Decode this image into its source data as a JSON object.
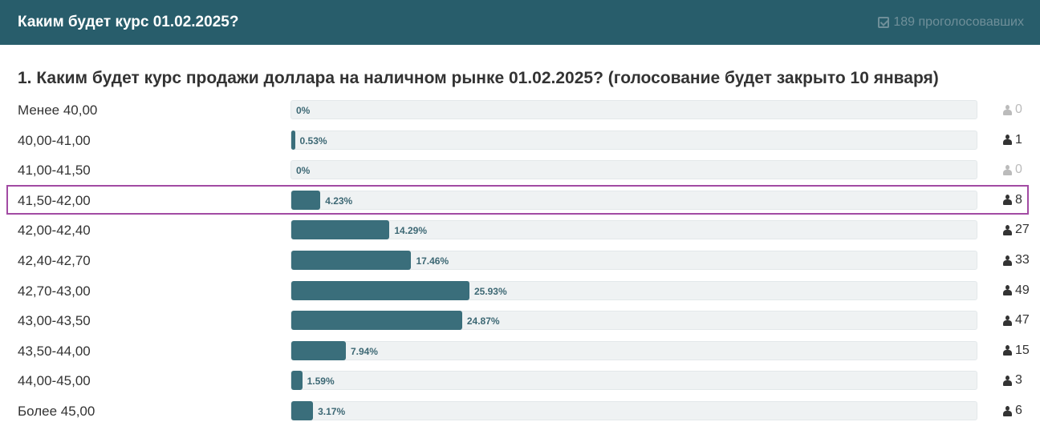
{
  "header": {
    "title": "Каким будет курс 01.02.2025?",
    "votes_label": "189 проголосовавших",
    "votes_icon": "check-square-icon"
  },
  "chart_data": {
    "type": "bar",
    "title": "1. Каким будет курс продажи доллара на наличном рынке 01.02.2025? (голосование будет закрыто 10 января)",
    "categories": [
      "Менее 40,00",
      "40,00-41,00",
      "41,00-41,50",
      "41,50-42,00",
      "42,00-42,40",
      "42,40-42,70",
      "42,70-43,00",
      "43,00-43,50",
      "43,50-44,00",
      "44,00-45,00",
      "Более 45,00"
    ],
    "percent_labels": [
      "0%",
      "0.53%",
      "0%",
      "4.23%",
      "14.29%",
      "17.46%",
      "25.93%",
      "24.87%",
      "7.94%",
      "1.59%",
      "3.17%"
    ],
    "values": [
      0,
      0.53,
      0,
      4.23,
      14.29,
      17.46,
      25.93,
      24.87,
      7.94,
      1.59,
      3.17
    ],
    "counts": [
      "0",
      "1",
      "0",
      "8",
      "27",
      "33",
      "49",
      "47",
      "15",
      "3",
      "6"
    ],
    "highlighted_index": 3,
    "colors": {
      "bar": "#3a6e7b",
      "track": "#eff2f3",
      "highlight": "#a24ba3"
    }
  }
}
